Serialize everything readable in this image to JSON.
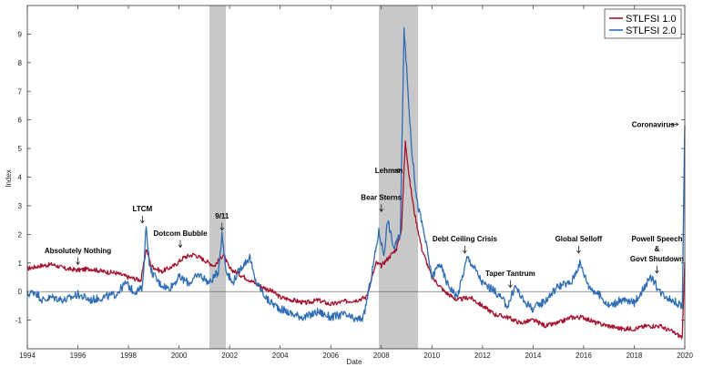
{
  "chart_data": {
    "type": "line",
    "title": "",
    "xlabel": "Date",
    "ylabel": "Index",
    "xlim": [
      1994,
      2020
    ],
    "ylim": [
      -2,
      10
    ],
    "x_ticks": [
      1994,
      1996,
      1998,
      2000,
      2002,
      2004,
      2006,
      2008,
      2010,
      2012,
      2014,
      2016,
      2018,
      2020
    ],
    "y_ticks": [
      -1,
      0,
      1,
      2,
      3,
      4,
      5,
      6,
      7,
      8,
      9
    ],
    "legend_position": "top-right",
    "shaded_periods": [
      {
        "start": 2001.2,
        "end": 2001.85
      },
      {
        "start": 2007.9,
        "end": 2009.45
      }
    ],
    "series": [
      {
        "name": "STLFSI 1.0",
        "color": "#a3122e",
        "points": [
          [
            1994.0,
            0.8
          ],
          [
            1994.5,
            0.9
          ],
          [
            1995.0,
            0.95
          ],
          [
            1995.5,
            0.8
          ],
          [
            1996.0,
            0.75
          ],
          [
            1996.5,
            0.8
          ],
          [
            1997.0,
            0.7
          ],
          [
            1997.5,
            0.65
          ],
          [
            1998.0,
            0.5
          ],
          [
            1998.5,
            0.4
          ],
          [
            1998.7,
            1.5
          ],
          [
            1998.9,
            0.9
          ],
          [
            1999.3,
            0.7
          ],
          [
            1999.8,
            0.9
          ],
          [
            2000.2,
            1.2
          ],
          [
            2000.6,
            1.3
          ],
          [
            2001.0,
            1.1
          ],
          [
            2001.4,
            0.9
          ],
          [
            2001.75,
            1.3
          ],
          [
            2002.0,
            0.8
          ],
          [
            2002.4,
            0.6
          ],
          [
            2002.8,
            0.4
          ],
          [
            2003.2,
            0.2
          ],
          [
            2003.7,
            0.0
          ],
          [
            2004.0,
            -0.2
          ],
          [
            2004.5,
            -0.3
          ],
          [
            2005.0,
            -0.4
          ],
          [
            2005.5,
            -0.3
          ],
          [
            2006.0,
            -0.45
          ],
          [
            2006.5,
            -0.35
          ],
          [
            2007.0,
            -0.3
          ],
          [
            2007.4,
            -0.2
          ],
          [
            2007.8,
            1.0
          ],
          [
            2008.0,
            0.9
          ],
          [
            2008.3,
            1.2
          ],
          [
            2008.6,
            1.5
          ],
          [
            2008.8,
            2.2
          ],
          [
            2008.95,
            5.3
          ],
          [
            2009.1,
            4.0
          ],
          [
            2009.3,
            2.8
          ],
          [
            2009.6,
            1.5
          ],
          [
            2010.0,
            0.5
          ],
          [
            2010.5,
            0.0
          ],
          [
            2011.0,
            -0.3
          ],
          [
            2011.5,
            -0.2
          ],
          [
            2012.0,
            -0.5
          ],
          [
            2012.5,
            -0.8
          ],
          [
            2013.0,
            -0.9
          ],
          [
            2013.5,
            -1.1
          ],
          [
            2014.0,
            -1.0
          ],
          [
            2014.5,
            -1.2
          ],
          [
            2015.0,
            -1.1
          ],
          [
            2015.5,
            -0.9
          ],
          [
            2016.0,
            -0.9
          ],
          [
            2016.5,
            -1.1
          ],
          [
            2017.0,
            -1.2
          ],
          [
            2017.5,
            -1.3
          ],
          [
            2018.0,
            -1.3
          ],
          [
            2018.5,
            -1.2
          ],
          [
            2019.0,
            -1.2
          ],
          [
            2019.5,
            -1.4
          ],
          [
            2019.9,
            -1.6
          ],
          [
            2020.0,
            1.0
          ]
        ]
      },
      {
        "name": "STLFSI 2.0",
        "color": "#2e6db4",
        "points": [
          [
            1994.0,
            -0.1
          ],
          [
            1994.3,
            0.0
          ],
          [
            1994.6,
            -0.3
          ],
          [
            1995.0,
            -0.2
          ],
          [
            1995.5,
            -0.3
          ],
          [
            1996.0,
            -0.1
          ],
          [
            1996.5,
            -0.3
          ],
          [
            1997.0,
            -0.2
          ],
          [
            1997.5,
            -0.1
          ],
          [
            1997.9,
            0.3
          ],
          [
            1998.2,
            0.0
          ],
          [
            1998.55,
            0.1
          ],
          [
            1998.7,
            2.3
          ],
          [
            1998.85,
            0.8
          ],
          [
            1999.2,
            0.3
          ],
          [
            1999.6,
            0.1
          ],
          [
            2000.0,
            0.5
          ],
          [
            2000.4,
            0.3
          ],
          [
            2000.8,
            0.6
          ],
          [
            2001.2,
            0.3
          ],
          [
            2001.55,
            0.7
          ],
          [
            2001.7,
            2.0
          ],
          [
            2001.85,
            0.8
          ],
          [
            2002.1,
            0.3
          ],
          [
            2002.5,
            0.9
          ],
          [
            2002.8,
            1.2
          ],
          [
            2003.0,
            0.4
          ],
          [
            2003.5,
            -0.3
          ],
          [
            2004.0,
            -0.6
          ],
          [
            2004.5,
            -0.8
          ],
          [
            2005.0,
            -0.9
          ],
          [
            2005.5,
            -0.7
          ],
          [
            2006.0,
            -0.9
          ],
          [
            2006.5,
            -0.8
          ],
          [
            2007.0,
            -1.0
          ],
          [
            2007.3,
            -0.9
          ],
          [
            2007.6,
            0.5
          ],
          [
            2007.9,
            2.1
          ],
          [
            2008.1,
            1.3
          ],
          [
            2008.25,
            2.5
          ],
          [
            2008.5,
            1.5
          ],
          [
            2008.75,
            2.0
          ],
          [
            2008.9,
            9.3
          ],
          [
            2009.05,
            7.0
          ],
          [
            2009.2,
            5.0
          ],
          [
            2009.4,
            3.2
          ],
          [
            2009.7,
            2.0
          ],
          [
            2010.0,
            0.5
          ],
          [
            2010.3,
            1.0
          ],
          [
            2010.6,
            0.3
          ],
          [
            2011.0,
            -0.2
          ],
          [
            2011.4,
            1.2
          ],
          [
            2011.7,
            0.8
          ],
          [
            2012.0,
            0.3
          ],
          [
            2012.5,
            0.0
          ],
          [
            2013.0,
            -0.5
          ],
          [
            2013.3,
            0.2
          ],
          [
            2013.6,
            -0.3
          ],
          [
            2014.0,
            -0.6
          ],
          [
            2014.5,
            -0.3
          ],
          [
            2015.0,
            0.2
          ],
          [
            2015.5,
            0.3
          ],
          [
            2015.85,
            1.0
          ],
          [
            2016.2,
            0.2
          ],
          [
            2016.7,
            -0.2
          ],
          [
            2017.0,
            -0.5
          ],
          [
            2017.5,
            -0.3
          ],
          [
            2018.0,
            -0.4
          ],
          [
            2018.5,
            0.3
          ],
          [
            2018.7,
            0.5
          ],
          [
            2019.0,
            0.0
          ],
          [
            2019.5,
            -0.3
          ],
          [
            2019.9,
            -0.5
          ],
          [
            2020.0,
            5.8
          ]
        ]
      }
    ],
    "annotations": [
      {
        "text": "Absolutely Nothing",
        "x": 1996.0,
        "y": 1.35
      },
      {
        "text": "LTCM",
        "x": 1998.55,
        "y": 2.8
      },
      {
        "text": "Dotcom Bubble",
        "x": 2000.05,
        "y": 1.95
      },
      {
        "text": "9/11",
        "x": 2001.7,
        "y": 2.55
      },
      {
        "text": "Bear Sterns",
        "x": 2008.0,
        "y": 3.2
      },
      {
        "text": "Lehman",
        "x": 2008.3,
        "y": 4.15
      },
      {
        "text": "Debt Ceiling Crisis",
        "x": 2011.3,
        "y": 1.75
      },
      {
        "text": "Taper Tantrum",
        "x": 2013.1,
        "y": 0.55
      },
      {
        "text": "Global Selloff",
        "x": 2015.8,
        "y": 1.75
      },
      {
        "text": "Powell Speech",
        "x": 2018.9,
        "y": 1.75
      },
      {
        "text": "&",
        "x": 2018.9,
        "y": 1.4
      },
      {
        "text": "Govt Shutdown",
        "x": 2018.9,
        "y": 1.05
      },
      {
        "text": "Coronavirus",
        "x": 2018.75,
        "y": 5.75
      }
    ]
  }
}
